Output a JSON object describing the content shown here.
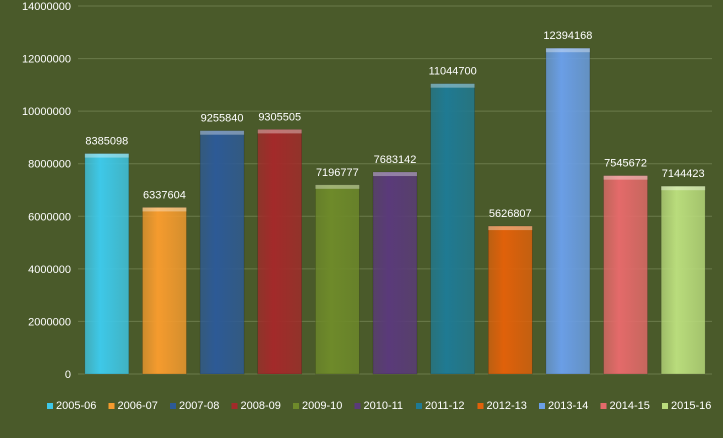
{
  "chart_data": {
    "type": "bar",
    "categories": [
      "2005-06",
      "2006-07",
      "2007-08",
      "2008-09",
      "2009-10",
      "2010-11",
      "2011-12",
      "2012-13",
      "2013-14",
      "2014-15",
      "2015-16"
    ],
    "values": [
      8385098,
      6337604,
      9255840,
      9305505,
      7196777,
      7683142,
      11044700,
      5626807,
      12394168,
      7545672,
      7144423
    ],
    "data_labels": [
      "8385098",
      "6337604",
      "9255840",
      "9305505",
      "7196777",
      "7683142",
      "11044700",
      "5626807",
      "12394168",
      "7545672",
      "7144423"
    ],
    "y_ticks": [
      "0",
      "2000000",
      "4000000",
      "6000000",
      "8000000",
      "10000000",
      "12000000",
      "14000000"
    ],
    "ylim": [
      0,
      14000000
    ],
    "grid": true,
    "legend_position": "bottom",
    "title": "",
    "xlabel": "",
    "ylabel": "",
    "colors": [
      "#3ec8e8",
      "#f59b2e",
      "#2d5a96",
      "#a32a2a",
      "#6e8a2a",
      "#5a3a7a",
      "#1f7a93",
      "#e0610a",
      "#6a9ee6",
      "#e46a6a",
      "#b9dc7c"
    ],
    "background": "#4a5a2a",
    "gridline_color": "#6a7a4a"
  }
}
